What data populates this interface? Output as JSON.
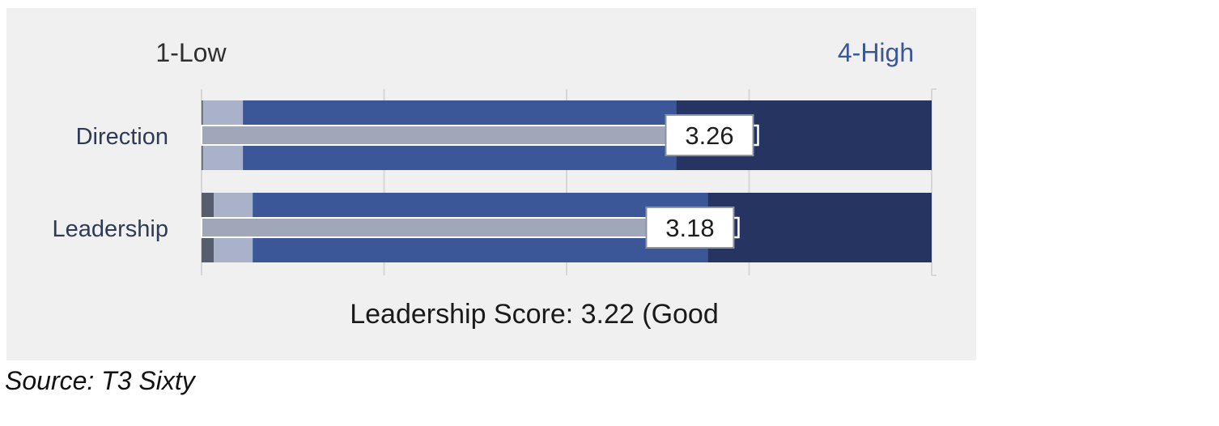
{
  "chart_data": {
    "type": "bar",
    "orientation": "horizontal",
    "scale_low_label": "1-Low",
    "scale_high_label": "4-High",
    "xlim": [
      1,
      4
    ],
    "categories": [
      "Direction",
      "Leadership"
    ],
    "values": [
      3.26,
      3.18
    ],
    "value_labels": [
      "3.26",
      "3.18"
    ],
    "band_breaks": [
      [
        1.005,
        1.17,
        2.95
      ],
      [
        1.05,
        1.21,
        3.08
      ]
    ],
    "summary": "Leadership Score: 3.22 (Good",
    "grid": true,
    "colors": {
      "band1": "#565d6e",
      "band2": "#a9b2c8",
      "band3": "#3c5797",
      "band4": "#253461",
      "value_bar": "#9fa7b9",
      "label_box": "#ffffff",
      "gridline": "#d6d6d6",
      "panel": "#f0f0f0"
    }
  },
  "source": "Source: T3 Sixty"
}
